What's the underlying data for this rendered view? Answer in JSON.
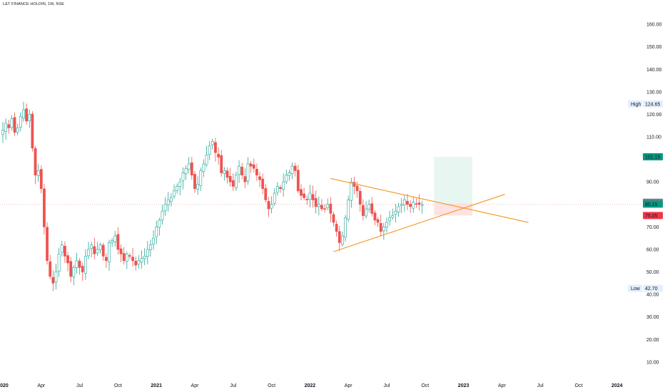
{
  "header": {
    "title": "L&T FINANCE HOLDIN, 1W, NSE"
  },
  "colors": {
    "up": "#26a69a",
    "down": "#ef5350",
    "trendline": "#f7931e",
    "target_zone": "#e8f6f1",
    "stop_zone": "#fde3e3",
    "price_line": "#ef9a9a",
    "background": "#ffffff"
  },
  "chart_data": {
    "type": "candlestick",
    "y_axis": {
      "ticks": [
        "160.00",
        "150.00",
        "140.00",
        "130.00",
        "120.00",
        "110.00",
        "90.00",
        "70.00",
        "60.00",
        "50.00",
        "40.00",
        "30.00",
        "20.00",
        "10.00"
      ],
      "tick_values": [
        160,
        150,
        140,
        130,
        120,
        110,
        90,
        70,
        60,
        50,
        40,
        30,
        20,
        10
      ],
      "range": [
        3,
        167
      ]
    },
    "x_axis": {
      "labels": [
        "2020",
        "Apr",
        "Jul",
        "Oct",
        "2021",
        "Apr",
        "Jul",
        "Oct",
        "2022",
        "Apr",
        "Jul",
        "Oct",
        "2023",
        "Apr",
        "Jul",
        "Oct",
        "2024"
      ],
      "label_dates": [
        "2020-01-06",
        "2020-04-06",
        "2020-07-06",
        "2020-10-05",
        "2021-01-04",
        "2021-04-05",
        "2021-07-05",
        "2021-10-04",
        "2022-01-03",
        "2022-04-04",
        "2022-07-04",
        "2022-10-03",
        "2023-01-02",
        "2023-04-03",
        "2023-07-03",
        "2023-10-02",
        "2024-01-01"
      ],
      "start_date": "2020-01-06",
      "end_date": "2024-03-31"
    },
    "price_labels": [
      {
        "label": "High",
        "value": "124.65",
        "price": 124.65,
        "style": "plain"
      },
      {
        "label": "",
        "value": "101.15",
        "price": 101.15,
        "style": "target"
      },
      {
        "label": "",
        "value": "80.95",
        "price": 80.95,
        "style": "gray"
      },
      {
        "label": "",
        "value": "80.15",
        "price": 80.15,
        "style": "current"
      },
      {
        "label": "",
        "value": "75.05",
        "price": 75.05,
        "style": "stop"
      },
      {
        "label": "Low",
        "value": "42.70",
        "price": 42.7,
        "style": "plain"
      }
    ],
    "trendlines": [
      {
        "name": "upper",
        "from": [
          "2022-02-21",
          91.5
        ],
        "to": [
          "2023-06-05",
          72.0
        ]
      },
      {
        "name": "lower",
        "from": [
          "2022-02-28",
          59.0
        ],
        "to": [
          "2023-04-10",
          84.5
        ]
      }
    ],
    "position": {
      "type": "long",
      "start_date": "2022-10-24",
      "end_date": "2023-01-23",
      "entry": 80.15,
      "target": 101.15,
      "stop": 75.05
    },
    "current_price": 80.15,
    "weekly_closes": [
      113,
      116,
      114,
      118,
      112,
      114,
      119,
      122,
      117,
      120,
      105,
      93,
      95,
      87,
      70,
      55,
      48,
      45,
      50,
      58,
      62,
      57,
      54,
      48,
      52,
      55,
      52,
      50,
      57,
      60,
      62,
      58,
      60,
      62,
      57,
      55,
      63,
      64,
      66,
      60,
      58,
      55,
      58,
      57,
      55,
      53,
      55,
      56,
      57,
      60,
      62,
      65,
      70,
      73,
      77,
      80,
      82,
      83,
      86,
      88,
      90,
      94,
      96,
      98,
      93,
      87,
      89,
      95,
      98,
      102,
      106,
      108,
      103,
      101,
      94,
      95,
      92,
      90,
      88,
      93,
      97,
      93,
      90,
      98,
      97,
      96,
      93,
      91,
      87,
      82,
      78,
      80,
      85,
      88,
      87,
      90,
      93,
      94,
      97,
      95,
      86,
      84,
      83,
      82,
      85,
      82,
      79,
      80,
      78,
      78,
      80,
      76,
      72,
      68,
      63,
      66,
      74,
      82,
      90,
      88,
      86,
      80,
      75,
      78,
      80,
      76,
      73,
      72,
      68,
      70,
      72,
      74,
      75,
      77,
      79,
      80,
      82,
      80,
      79,
      81,
      80,
      80,
      80
    ]
  }
}
